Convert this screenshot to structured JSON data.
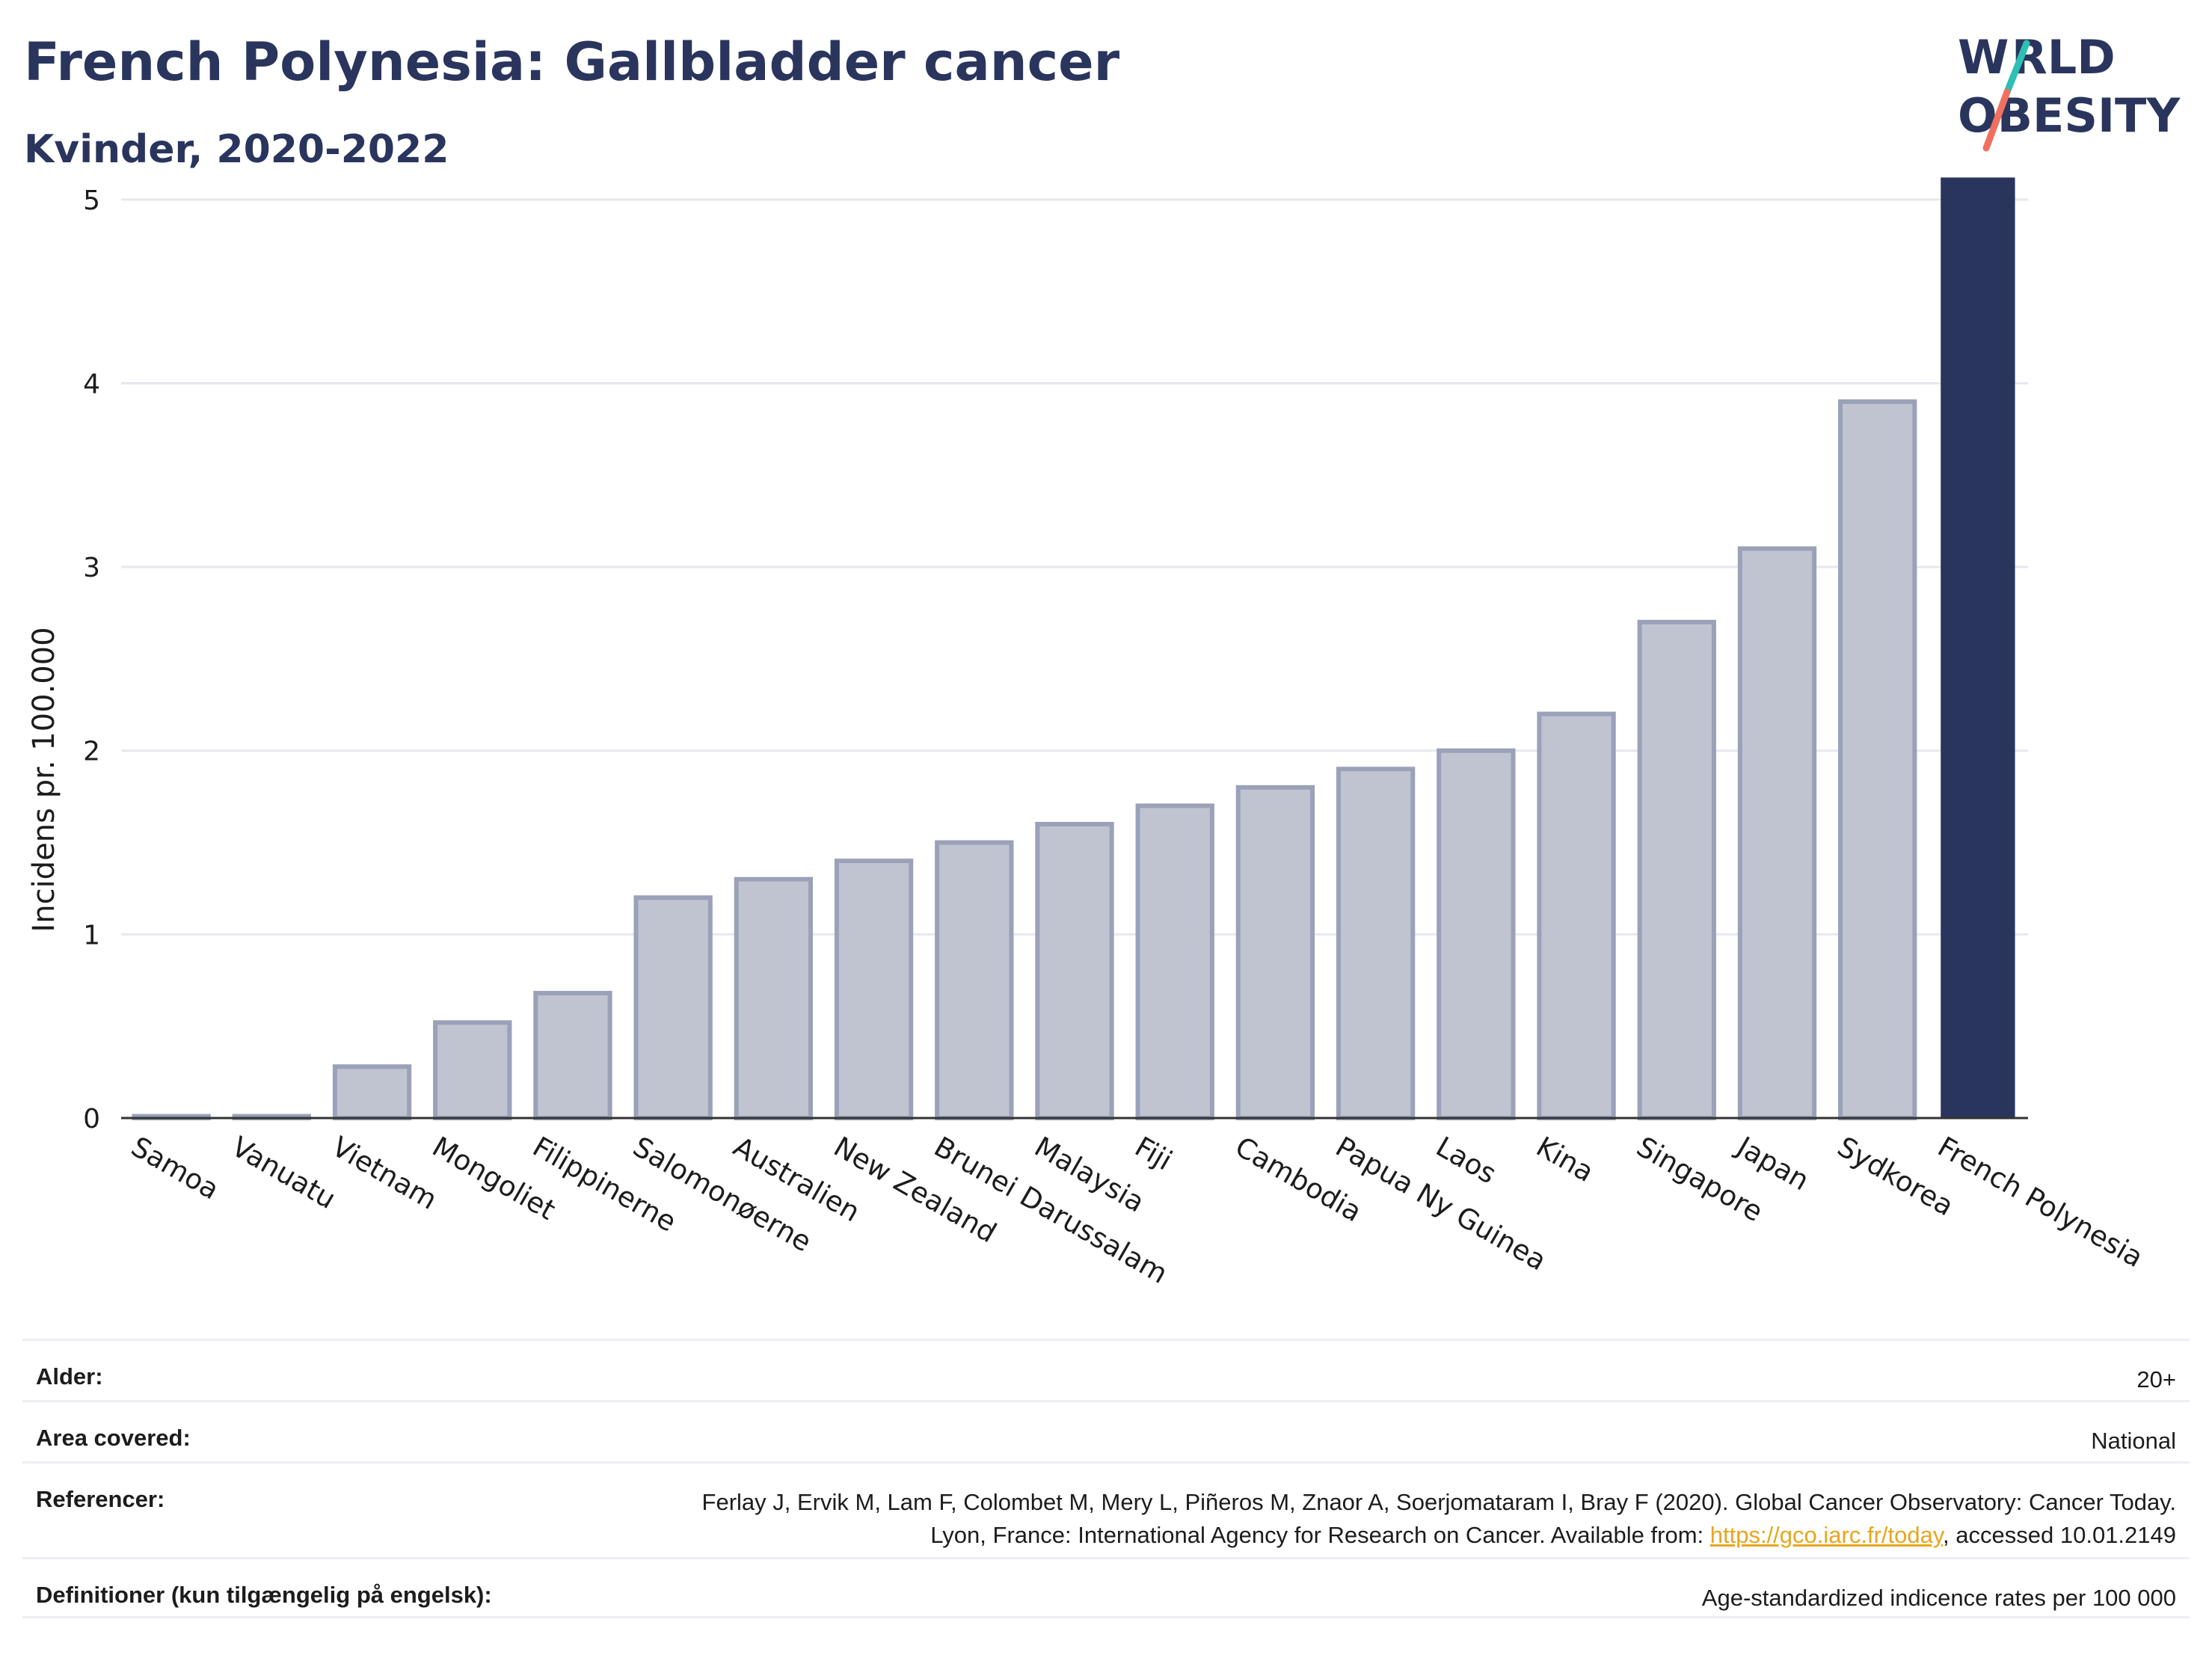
{
  "header": {
    "title": "French Polynesia: Gallbladder cancer",
    "subtitle": "Kvinder, 2020-2022"
  },
  "logo": {
    "line1": "WORLD",
    "line2": "OBESITY",
    "accent_teal": "#2dc0b5",
    "accent_coral": "#f07060"
  },
  "colors": {
    "highlight": "#2a355e",
    "bar_fill": "#c0c4d1",
    "bar_stroke": "#9aa1b8",
    "grid": "#e6e8ee",
    "text": "#2a355e",
    "link": "#e8a51c"
  },
  "chart_data": {
    "type": "bar",
    "title": "French Polynesia: Gallbladder cancer",
    "subtitle": "Kvinder, 2020-2022",
    "ylabel": "Incidens pr. 100.000",
    "xlabel": "",
    "ylim": [
      0,
      5.15
    ],
    "yticks": [
      0,
      1,
      2,
      3,
      4,
      5
    ],
    "grid": true,
    "highlight_category": "French Polynesia",
    "categories": [
      "Samoa",
      "Vanuatu",
      "Vietnam",
      "Mongoliet",
      "Filippinerne",
      "Salomonøerne",
      "Australien",
      "New Zealand",
      "Brunei Darussalam",
      "Malaysia",
      "Fiji",
      "Cambodia",
      "Papua Ny Guinea",
      "Laos",
      "Kina",
      "Singapore",
      "Japan",
      "Sydkorea",
      "French Polynesia"
    ],
    "values": [
      0.01,
      0.01,
      0.28,
      0.52,
      0.68,
      1.2,
      1.3,
      1.4,
      1.5,
      1.6,
      1.7,
      1.8,
      1.9,
      2.0,
      2.2,
      2.7,
      3.1,
      3.9,
      5.12
    ]
  },
  "meta": {
    "rows": [
      {
        "label": "Alder:",
        "value": "20+"
      },
      {
        "label": "Area covered:",
        "value": "National"
      },
      {
        "label": "Referencer:",
        "value_pre": "Ferlay J, Ervik M, Lam F, Colombet M, Mery L, Piñeros M, Znaor A, Soerjomataram I, Bray F (2020). Global Cancer Observatory: Cancer Today. Lyon, France: International Agency for Research on Cancer. Available from: ",
        "link": "https://gco.iarc.fr/today",
        "value_post": ", accessed 10.01.2149"
      },
      {
        "label": "Definitioner (kun tilgængelig på engelsk):",
        "value": "Age-standardized indicence rates per 100 000"
      }
    ]
  }
}
